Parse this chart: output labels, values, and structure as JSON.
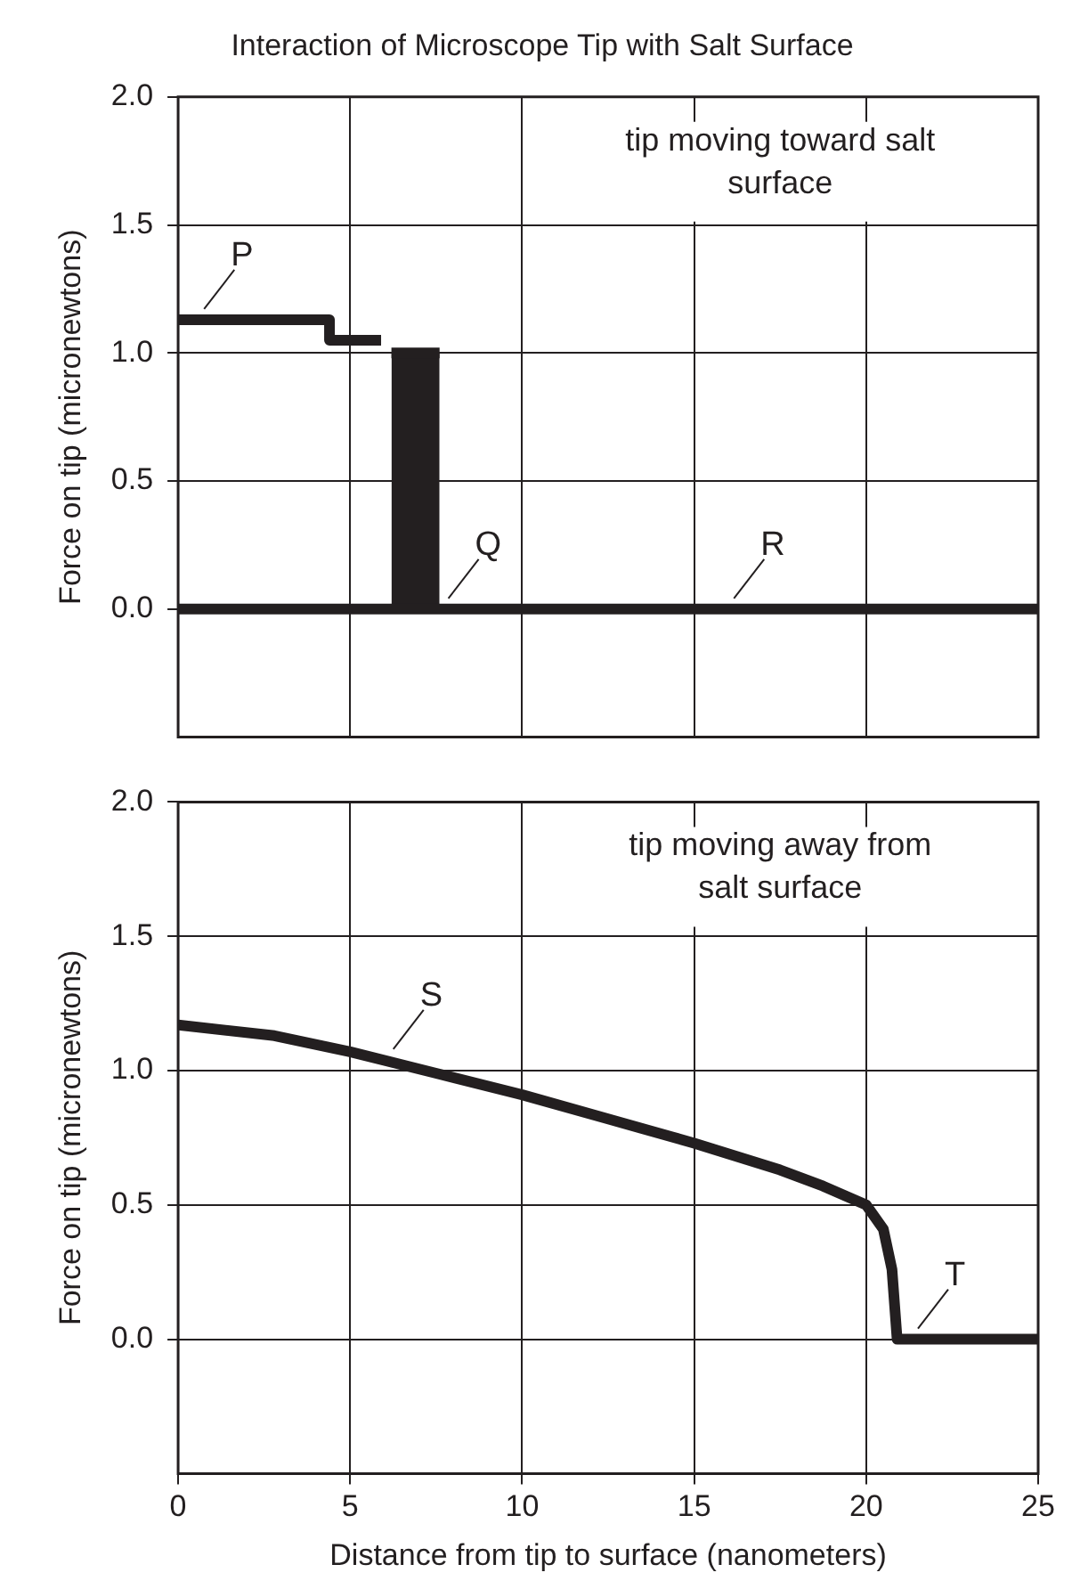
{
  "chart_data": [
    {
      "type": "line",
      "title": "Interaction of Microscope Tip with Salt Surface",
      "ylabel": "Force on tip (micronewtons)",
      "series": [
        {
          "type": "line",
          "color": "#231f20",
          "x": [
            0,
            25
          ],
          "values": [
            0,
            0
          ]
        },
        {
          "type": "step",
          "color": "#231f20",
          "x": [
            0,
            4.4,
            5.9
          ],
          "values": [
            1.13,
            1.05,
            1.05
          ]
        },
        {
          "type": "area",
          "color": "#231f20",
          "x": [
            6.2,
            7.6
          ],
          "values": [
            1.0,
            1.0
          ]
        }
      ],
      "annotations": [
        "tip moving toward salt surface",
        {
          "text": "P",
          "x": 0.6,
          "y": 1.13
        },
        {
          "text": "Q",
          "x": 7.7,
          "y": 0
        },
        {
          "text": "R",
          "x": 16.0,
          "y": 0
        }
      ],
      "xlim": [
        0,
        25
      ],
      "xticks": [
        0,
        5,
        10,
        15,
        20,
        25
      ],
      "ylim": [
        -0.5,
        2.0
      ],
      "yticks": [
        {
          "value": 0,
          "label": "0.0"
        },
        {
          "value": 0.5,
          "label": "0.5"
        },
        {
          "value": 1,
          "label": "1.0"
        },
        {
          "value": 1.5,
          "label": "1.5"
        },
        {
          "value": 2,
          "label": "2.0"
        }
      ],
      "grid": true,
      "tick_labels": "y"
    },
    {
      "type": "line",
      "xlabel": "Distance from tip to surface (nanometers)",
      "ylabel": "Force on tip (micronewtons)",
      "series": [
        {
          "type": "line",
          "color": "#231f20",
          "x": [
            0,
            2.8,
            5,
            7.5,
            10,
            12.5,
            15,
            17.5,
            18.75,
            20,
            20.5,
            20.75,
            20.9,
            25
          ],
          "values": [
            1.17,
            1.13,
            1.07,
            0.99,
            0.91,
            0.82,
            0.73,
            0.63,
            0.57,
            0.5,
            0.41,
            0.26,
            0,
            0
          ]
        }
      ],
      "annotations": [
        "tip moving away from salt surface",
        {
          "text": "S",
          "x": 6.1,
          "y": 1.04
        },
        {
          "text": "T",
          "x": 21.35,
          "y": 0
        }
      ],
      "xlim": [
        0,
        25
      ],
      "xticks": [
        0,
        5,
        10,
        15,
        20,
        25
      ],
      "ylim": [
        -0.5,
        2.0
      ],
      "yticks": [
        {
          "value": 0,
          "label": "0.0"
        },
        {
          "value": 0.5,
          "label": "0.5"
        },
        {
          "value": 1,
          "label": "1.0"
        },
        {
          "value": 1.5,
          "label": "1.5"
        },
        {
          "value": 2,
          "label": "2.0"
        }
      ],
      "grid": true
    }
  ]
}
